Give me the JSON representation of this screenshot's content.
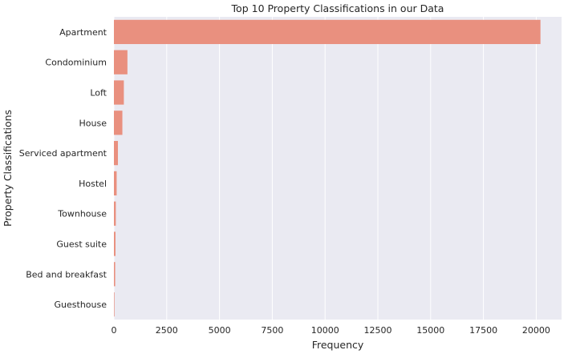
{
  "chart_data": {
    "type": "bar",
    "orientation": "horizontal",
    "title": "Top 10 Property Classifications in our Data",
    "xlabel": "Frequency",
    "ylabel": "Property Classifications",
    "categories": [
      "Apartment",
      "Condominium",
      "Loft",
      "House",
      "Serviced apartment",
      "Hostel",
      "Townhouse",
      "Guest suite",
      "Bed and breakfast",
      "Guesthouse"
    ],
    "values": [
      20200,
      640,
      470,
      400,
      190,
      130,
      90,
      75,
      60,
      25
    ],
    "xlim": [
      0,
      21200
    ],
    "xticks": [
      0,
      2500,
      5000,
      7500,
      10000,
      12500,
      15000,
      17500,
      20000
    ],
    "bar_color": "#e9907f",
    "background_color": "#eaeaf2",
    "grid": true
  }
}
